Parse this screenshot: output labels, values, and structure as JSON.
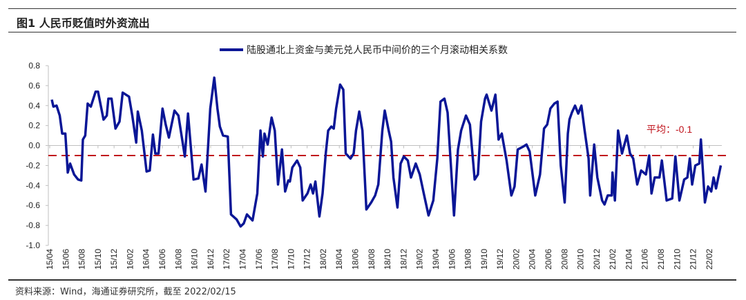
{
  "figure": {
    "title": "图1  人民币贬值时外资流出",
    "source": "资料来源：Wind，海通证券研究所，截至 2022/02/15"
  },
  "colors": {
    "series": "#0a1696",
    "mean_line": "#c0121b",
    "axis": "#bfbfbf"
  },
  "chart_data": {
    "type": "line",
    "title": "",
    "xlabel": "",
    "ylabel": "",
    "ylim": [
      -1.0,
      0.8
    ],
    "yticks": [
      "0.8",
      "0.6",
      "0.4",
      "0.2",
      "0.0",
      "-0.2",
      "-0.4",
      "-0.6",
      "-0.8",
      "-1.0"
    ],
    "ytick_values": [
      0.8,
      0.6,
      0.4,
      0.2,
      0.0,
      -0.2,
      -0.4,
      -0.6,
      -0.8,
      -1.0
    ],
    "grid": false,
    "legend_position": "top-center",
    "x_unit": "months since 2015/04",
    "xticks": [
      "15/04",
      "15/06",
      "15/08",
      "15/10",
      "15/12",
      "16/02",
      "16/04",
      "16/06",
      "16/08",
      "16/10",
      "16/12",
      "17/02",
      "17/04",
      "17/06",
      "17/08",
      "17/10",
      "17/12",
      "18/02",
      "18/04",
      "18/06",
      "18/08",
      "18/10",
      "18/12",
      "19/02",
      "19/04",
      "19/06",
      "19/08",
      "19/10",
      "19/12",
      "20/02",
      "20/04",
      "20/06",
      "20/08",
      "20/10",
      "20/12",
      "21/02",
      "21/04",
      "21/06",
      "21/08",
      "21/10",
      "21/12",
      "22/02"
    ],
    "series": [
      {
        "name": "陆股通北上资金与美元兑人民币中间价的三个月滚动相关系数",
        "x": [
          0,
          0.2,
          0.6,
          1.0,
          1.3,
          1.7,
          2.0,
          2.3,
          2.8,
          3.3,
          3.7,
          3.9,
          4.2,
          4.5,
          4.9,
          5.5,
          5.8,
          6.5,
          6.9,
          7.1,
          7.5,
          8.0,
          8.5,
          8.9,
          9.7,
          10.1,
          10.6,
          10.8,
          11.3,
          11.9,
          12.3,
          12.7,
          13.0,
          13.4,
          13.9,
          14.3,
          14.7,
          15.4,
          15.9,
          16.7,
          17.1,
          17.8,
          18.4,
          18.8,
          19.3,
          19.9,
          20.4,
          20.8,
          21.1,
          21.5,
          22.1,
          22.5,
          23.2,
          23.7,
          24.1,
          24.5,
          25.2,
          25.8,
          26.2,
          26.5,
          26.7,
          27.1,
          27.6,
          28.0,
          28.4,
          28.9,
          29.3,
          29.7,
          29.9,
          30.2,
          30.8,
          31.2,
          31.5,
          32.1,
          32.5,
          32.8,
          33.1,
          33.6,
          34.0,
          34.4,
          34.7,
          35.1,
          35.4,
          35.7,
          36.2,
          36.6,
          36.9,
          37.5,
          37.9,
          38.2,
          38.6,
          39.0,
          39.5,
          40.1,
          40.6,
          41.0,
          41.5,
          41.8,
          42.3,
          42.6,
          42.9,
          43.4,
          43.8,
          44.2,
          44.7,
          45.1,
          45.7,
          46.2,
          46.7,
          47.3,
          47.9,
          48.4,
          48.8,
          49.3,
          49.7,
          50.5,
          51.0,
          51.4,
          52.0,
          52.5,
          53.1,
          53.5,
          53.9,
          54.4,
          54.6,
          55.2,
          55.7,
          56.1,
          56.5,
          57.1,
          57.7,
          58.1,
          58.5,
          59.2,
          59.6,
          60.0,
          60.7,
          61.3,
          61.8,
          62.2,
          62.6,
          63.1,
          63.5,
          63.9,
          64.4,
          64.8,
          65.0,
          65.3,
          65.7,
          66.1,
          66.5,
          66.9,
          67.4,
          67.6,
          68.1,
          68.5,
          69.1,
          69.4,
          69.8,
          70.3,
          70.4,
          70.7,
          71.1,
          71.6,
          72.2,
          72.6,
          73.0,
          73.5,
          74.0,
          74.6,
          75.0,
          75.3,
          75.7,
          76.3,
          76.6,
          77.2,
          77.9,
          78.3,
          78.8,
          79.4,
          79.8,
          80.1,
          80.4,
          80.8,
          81.3,
          81.5,
          82.0,
          82.4,
          82.8,
          83.1,
          83.4,
          84.0
        ],
        "values": [
          0.46,
          0.39,
          0.4,
          0.3,
          0.12,
          0.12,
          -0.27,
          -0.18,
          -0.29,
          -0.34,
          -0.35,
          0.06,
          0.1,
          0.42,
          0.39,
          0.54,
          0.54,
          0.26,
          0.3,
          0.47,
          0.47,
          0.17,
          0.24,
          0.53,
          0.49,
          0.3,
          0.03,
          0.34,
          0.15,
          -0.26,
          -0.25,
          0.11,
          -0.08,
          -0.08,
          0.37,
          0.21,
          0.08,
          0.35,
          0.3,
          -0.11,
          0.32,
          -0.34,
          -0.33,
          -0.19,
          -0.46,
          0.37,
          0.68,
          0.37,
          0.19,
          0.1,
          0.09,
          -0.69,
          -0.74,
          -0.81,
          -0.78,
          -0.69,
          -0.75,
          -0.48,
          0.15,
          -0.11,
          0.12,
          0.01,
          0.28,
          0.15,
          -0.39,
          -0.04,
          -0.46,
          -0.35,
          -0.36,
          -0.22,
          -0.15,
          -0.22,
          -0.55,
          -0.48,
          -0.39,
          -0.48,
          -0.36,
          -0.71,
          -0.48,
          -0.08,
          0.15,
          0.19,
          0.17,
          0.37,
          0.61,
          0.56,
          -0.08,
          -0.13,
          -0.08,
          0.15,
          0.34,
          0.15,
          -0.64,
          -0.57,
          -0.5,
          -0.39,
          0.15,
          0.35,
          0.15,
          0.04,
          -0.32,
          -0.62,
          -0.18,
          -0.11,
          -0.15,
          -0.32,
          -0.18,
          -0.29,
          -0.48,
          -0.7,
          -0.55,
          -0.13,
          0.44,
          0.47,
          0.33,
          -0.7,
          -0.04,
          0.15,
          0.3,
          0.21,
          -0.34,
          -0.29,
          0.24,
          0.47,
          0.51,
          0.35,
          0.51,
          0.06,
          0.12,
          -0.15,
          -0.5,
          -0.41,
          -0.04,
          -0.01,
          0.01,
          -0.06,
          -0.5,
          -0.29,
          0.17,
          0.21,
          0.37,
          0.42,
          0.44,
          -0.2,
          -0.57,
          0.12,
          0.26,
          0.33,
          0.4,
          0.32,
          0.4,
          0.15,
          -0.13,
          -0.5,
          0.01,
          -0.32,
          -0.55,
          -0.59,
          -0.5,
          -0.5,
          -0.27,
          -0.55,
          0.15,
          -0.08,
          0.1,
          -0.08,
          -0.13,
          -0.39,
          -0.25,
          -0.29,
          -0.1,
          -0.48,
          -0.32,
          -0.32,
          -0.15,
          -0.55,
          -0.53,
          -0.11,
          -0.55,
          -0.34,
          -0.32,
          -0.13,
          -0.39,
          -0.2,
          -0.18,
          0.06,
          -0.57,
          -0.41,
          -0.46,
          -0.32,
          -0.43,
          -0.2
        ]
      }
    ],
    "reference_line": {
      "value": -0.1,
      "label": "平均：-0.1",
      "style": "dashed"
    }
  }
}
